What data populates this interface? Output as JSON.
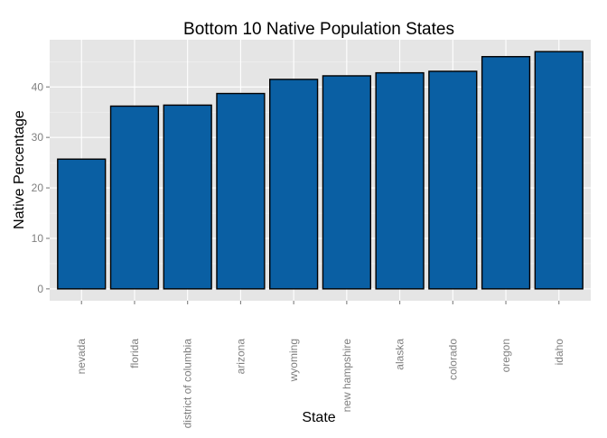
{
  "chart_data": {
    "type": "bar",
    "title": "Bottom 10 Native Population States",
    "xlabel": "State",
    "ylabel": "Native Percentage",
    "categories": [
      "nevada",
      "florida",
      "district of columbia",
      "arizona",
      "wyoming",
      "new hampshire",
      "alaska",
      "colorado",
      "oregon",
      "idaho"
    ],
    "values": [
      25.7,
      36.2,
      36.4,
      38.7,
      41.5,
      42.2,
      42.8,
      43.1,
      46.0,
      47.0
    ],
    "ylim": [
      -2.35,
      49.35
    ],
    "yticks": [
      0,
      10,
      20,
      30,
      40
    ],
    "grid": true,
    "legend": "none",
    "bar_color": "#0a5fa3"
  }
}
